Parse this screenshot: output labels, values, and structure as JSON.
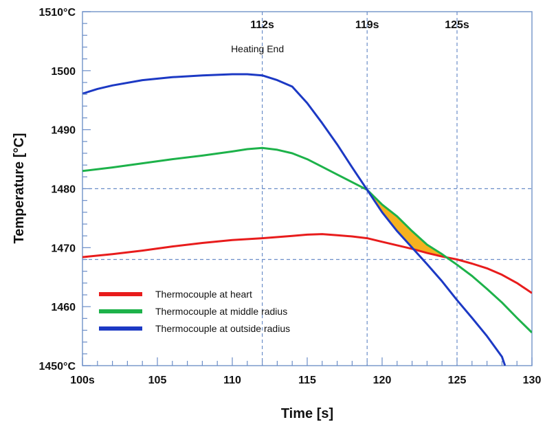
{
  "chart_data": {
    "type": "line",
    "xlabel": "Time [s]",
    "ylabel": "Temperature [°C]",
    "xlim": [
      100,
      130
    ],
    "ylim": [
      1450,
      1510
    ],
    "x_ticks": [
      {
        "value": 100,
        "label": "100s"
      },
      {
        "value": 105,
        "label": "105"
      },
      {
        "value": 110,
        "label": "110"
      },
      {
        "value": 115,
        "label": "115"
      },
      {
        "value": 120,
        "label": "120"
      },
      {
        "value": 125,
        "label": "125"
      },
      {
        "value": 130,
        "label": "130"
      }
    ],
    "y_ticks": [
      {
        "value": 1450,
        "label": "1450°C"
      },
      {
        "value": 1460,
        "label": "1460"
      },
      {
        "value": 1470,
        "label": "1470"
      },
      {
        "value": 1480,
        "label": "1480"
      },
      {
        "value": 1490,
        "label": "1490"
      },
      {
        "value": 1500,
        "label": "1500"
      },
      {
        "value": 1510,
        "label": "1510°C"
      }
    ],
    "vertical_markers": [
      {
        "x": 112,
        "label": "112s"
      },
      {
        "x": 119,
        "label": "119s"
      },
      {
        "x": 125,
        "label": "125s"
      }
    ],
    "horizontal_markers": [
      1480,
      1468
    ],
    "annotation": {
      "x": 112,
      "text": "Heating End"
    },
    "legend_position": "bottom-left",
    "series": [
      {
        "name": "Thermocouple  at heart",
        "color": "#e81c1c",
        "points": [
          [
            100,
            1468.4
          ],
          [
            102,
            1468.9
          ],
          [
            104,
            1469.5
          ],
          [
            106,
            1470.2
          ],
          [
            108,
            1470.8
          ],
          [
            110,
            1471.3
          ],
          [
            112,
            1471.6
          ],
          [
            114,
            1472.0
          ],
          [
            115,
            1472.2
          ],
          [
            116,
            1472.3
          ],
          [
            117,
            1472.1
          ],
          [
            118,
            1471.9
          ],
          [
            119,
            1471.6
          ],
          [
            120,
            1471.0
          ],
          [
            121,
            1470.4
          ],
          [
            122,
            1469.8
          ],
          [
            123,
            1469.1
          ],
          [
            124,
            1468.5
          ],
          [
            125,
            1468.0
          ],
          [
            126,
            1467.3
          ],
          [
            127,
            1466.5
          ],
          [
            128,
            1465.4
          ],
          [
            129,
            1464.0
          ],
          [
            130,
            1462.3
          ]
        ]
      },
      {
        "name": "Thermocouple  at middle radius",
        "color": "#1db24a",
        "points": [
          [
            100,
            1483.0
          ],
          [
            102,
            1483.6
          ],
          [
            104,
            1484.3
          ],
          [
            106,
            1485.0
          ],
          [
            108,
            1485.6
          ],
          [
            110,
            1486.3
          ],
          [
            111,
            1486.7
          ],
          [
            112,
            1486.9
          ],
          [
            113,
            1486.6
          ],
          [
            114,
            1486.0
          ],
          [
            115,
            1485.0
          ],
          [
            116,
            1483.7
          ],
          [
            117,
            1482.4
          ],
          [
            118,
            1481.1
          ],
          [
            119,
            1479.8
          ],
          [
            120,
            1477.3
          ],
          [
            121,
            1475.3
          ],
          [
            122,
            1472.8
          ],
          [
            123,
            1470.5
          ],
          [
            124,
            1468.9
          ],
          [
            125,
            1467.1
          ],
          [
            126,
            1465.2
          ],
          [
            127,
            1463.0
          ],
          [
            128,
            1460.7
          ],
          [
            129,
            1458.1
          ],
          [
            130,
            1455.6
          ]
        ]
      },
      {
        "name": "Thermocouple  at outside radius",
        "color": "#1c39c4",
        "points": [
          [
            100,
            1496.1
          ],
          [
            101,
            1496.9
          ],
          [
            102,
            1497.5
          ],
          [
            104,
            1498.4
          ],
          [
            106,
            1498.9
          ],
          [
            108,
            1499.2
          ],
          [
            110,
            1499.4
          ],
          [
            111,
            1499.4
          ],
          [
            112,
            1499.2
          ],
          [
            113,
            1498.4
          ],
          [
            114,
            1497.3
          ],
          [
            115,
            1494.5
          ],
          [
            116,
            1491.1
          ],
          [
            117,
            1487.5
          ],
          [
            118,
            1483.6
          ],
          [
            119,
            1479.8
          ],
          [
            120,
            1476.0
          ],
          [
            121,
            1472.8
          ],
          [
            122,
            1470.0
          ],
          [
            123,
            1467.2
          ],
          [
            124,
            1464.3
          ],
          [
            125,
            1461.1
          ],
          [
            126,
            1458.1
          ],
          [
            127,
            1455.0
          ],
          [
            128,
            1451.5
          ],
          [
            128.2,
            1450.0
          ]
        ]
      }
    ]
  }
}
